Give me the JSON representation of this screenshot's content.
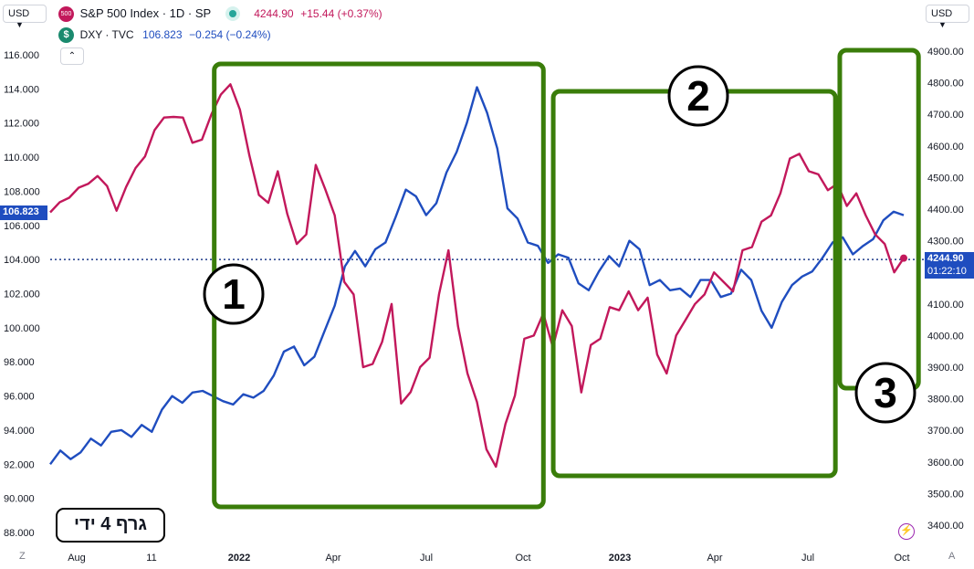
{
  "header": {
    "currency_left": "USD",
    "currency_right": "USD",
    "sp_logo": "500",
    "sp_title": "S&P 500 Index · 1D · SP",
    "sp_price": "4244.90",
    "sp_change": "+15.44 (+0.37%)",
    "dxy_logo": "$",
    "dxy_title": "DXY · TVC",
    "dxy_price": "106.823",
    "dxy_change": "−0.254 (−0.24%)",
    "collapse_icon": "chevron-up-icon"
  },
  "badges": {
    "dxy_last": "106.823",
    "sp_last": "4244.90",
    "sp_countdown": "01:22:10"
  },
  "annotations": {
    "zone_labels": [
      "1",
      "2",
      "3"
    ],
    "caption": "גרף 4 ידי"
  },
  "footer": {
    "z_button": "Z",
    "a_button": "A",
    "lightning_icon": "lightning-icon"
  },
  "colors": {
    "dxy": "#1f4dbf",
    "sp500": "#c2185b",
    "zones": "#3a7d0a",
    "dotted_line": "#1e3a8a"
  },
  "chart_data": {
    "type": "line",
    "x_tick_labels": [
      "Aug",
      "11",
      "2022",
      "Apr",
      "Jul",
      "Oct",
      "2023",
      "Apr",
      "Jul",
      "Oct"
    ],
    "x_range": [
      "2021-08",
      "2023-10"
    ],
    "left_axis": {
      "ticks": [
        "116.000",
        "114.000",
        "112.000",
        "110.000",
        "108.000",
        "106.000",
        "104.000",
        "102.000",
        "100.000",
        "98.000",
        "96.000",
        "94.000",
        "92.000",
        "90.000",
        "88.000"
      ],
      "range": [
        88,
        116
      ]
    },
    "right_axis": {
      "ticks": [
        "4900.00",
        "4800.00",
        "4700.00",
        "4600.00",
        "4500.00",
        "4400.00",
        "4300.00",
        "4200.00",
        "4100.00",
        "4000.00",
        "3900.00",
        "3800.00",
        "3700.00",
        "3600.00",
        "3500.00",
        "3400.00"
      ],
      "range": [
        3400,
        4900
      ]
    },
    "series": [
      {
        "name": "DXY",
        "axis": "left",
        "values": [
          92.0,
          92.8,
          92.3,
          92.7,
          93.5,
          93.1,
          93.9,
          94.0,
          93.6,
          94.3,
          93.9,
          95.2,
          96.0,
          95.6,
          96.2,
          96.3,
          96.0,
          95.7,
          95.5,
          96.1,
          95.9,
          96.3,
          97.2,
          98.6,
          98.9,
          97.8,
          98.3,
          99.8,
          101.3,
          103.6,
          104.5,
          103.6,
          104.6,
          105.0,
          106.5,
          108.1,
          107.7,
          106.6,
          107.3,
          109.1,
          110.3,
          112.0,
          114.1,
          112.6,
          110.5,
          107.0,
          106.4,
          105.0,
          104.8,
          103.8,
          104.3,
          104.1,
          102.6,
          102.2,
          103.3,
          104.2,
          103.6,
          105.1,
          104.6,
          102.5,
          102.8,
          102.2,
          102.3,
          101.8,
          102.8,
          102.8,
          101.8,
          102.0,
          103.4,
          102.8,
          101.0,
          100.0,
          101.5,
          102.5,
          103.0,
          103.3,
          104.1,
          105.0,
          105.3,
          104.3,
          104.8,
          105.2,
          106.3,
          106.8,
          106.6
        ],
        "end_value": 106.823
      },
      {
        "name": "S&P 500",
        "axis": "right",
        "values": [
          4390,
          4422,
          4436,
          4468,
          4480,
          4505,
          4473,
          4395,
          4470,
          4530,
          4567,
          4650,
          4690,
          4692,
          4690,
          4610,
          4620,
          4700,
          4763,
          4795,
          4715,
          4570,
          4445,
          4420,
          4520,
          4385,
          4290,
          4320,
          4540,
          4463,
          4380,
          4170,
          4130,
          3900,
          3910,
          3980,
          4100,
          3785,
          3821,
          3900,
          3930,
          4130,
          4270,
          4030,
          3880,
          3790,
          3640,
          3585,
          3720,
          3810,
          3990,
          4000,
          4070,
          3963,
          4080,
          4030,
          3820,
          3970,
          3990,
          4090,
          4080,
          4140,
          4080,
          4120,
          3940,
          3880,
          4000,
          4050,
          4100,
          4130,
          4200,
          4170,
          4140,
          4270,
          4280,
          4360,
          4380,
          4450,
          4560,
          4575,
          4520,
          4510,
          4460,
          4480,
          4410,
          4450,
          4380,
          4320,
          4290,
          4200,
          4245
        ],
        "end_value": 4244.9
      }
    ],
    "zones": [
      {
        "label": "1",
        "from": "2021-12-29",
        "to": "2022-10-26"
      },
      {
        "label": "2",
        "from": "2022-11-04",
        "to": "2023-07-20"
      },
      {
        "label": "3",
        "from": "2023-07-24",
        "to": "2023-10-04"
      }
    ],
    "crosshair_value": 104.0,
    "grid": false,
    "legend": "top-left"
  }
}
